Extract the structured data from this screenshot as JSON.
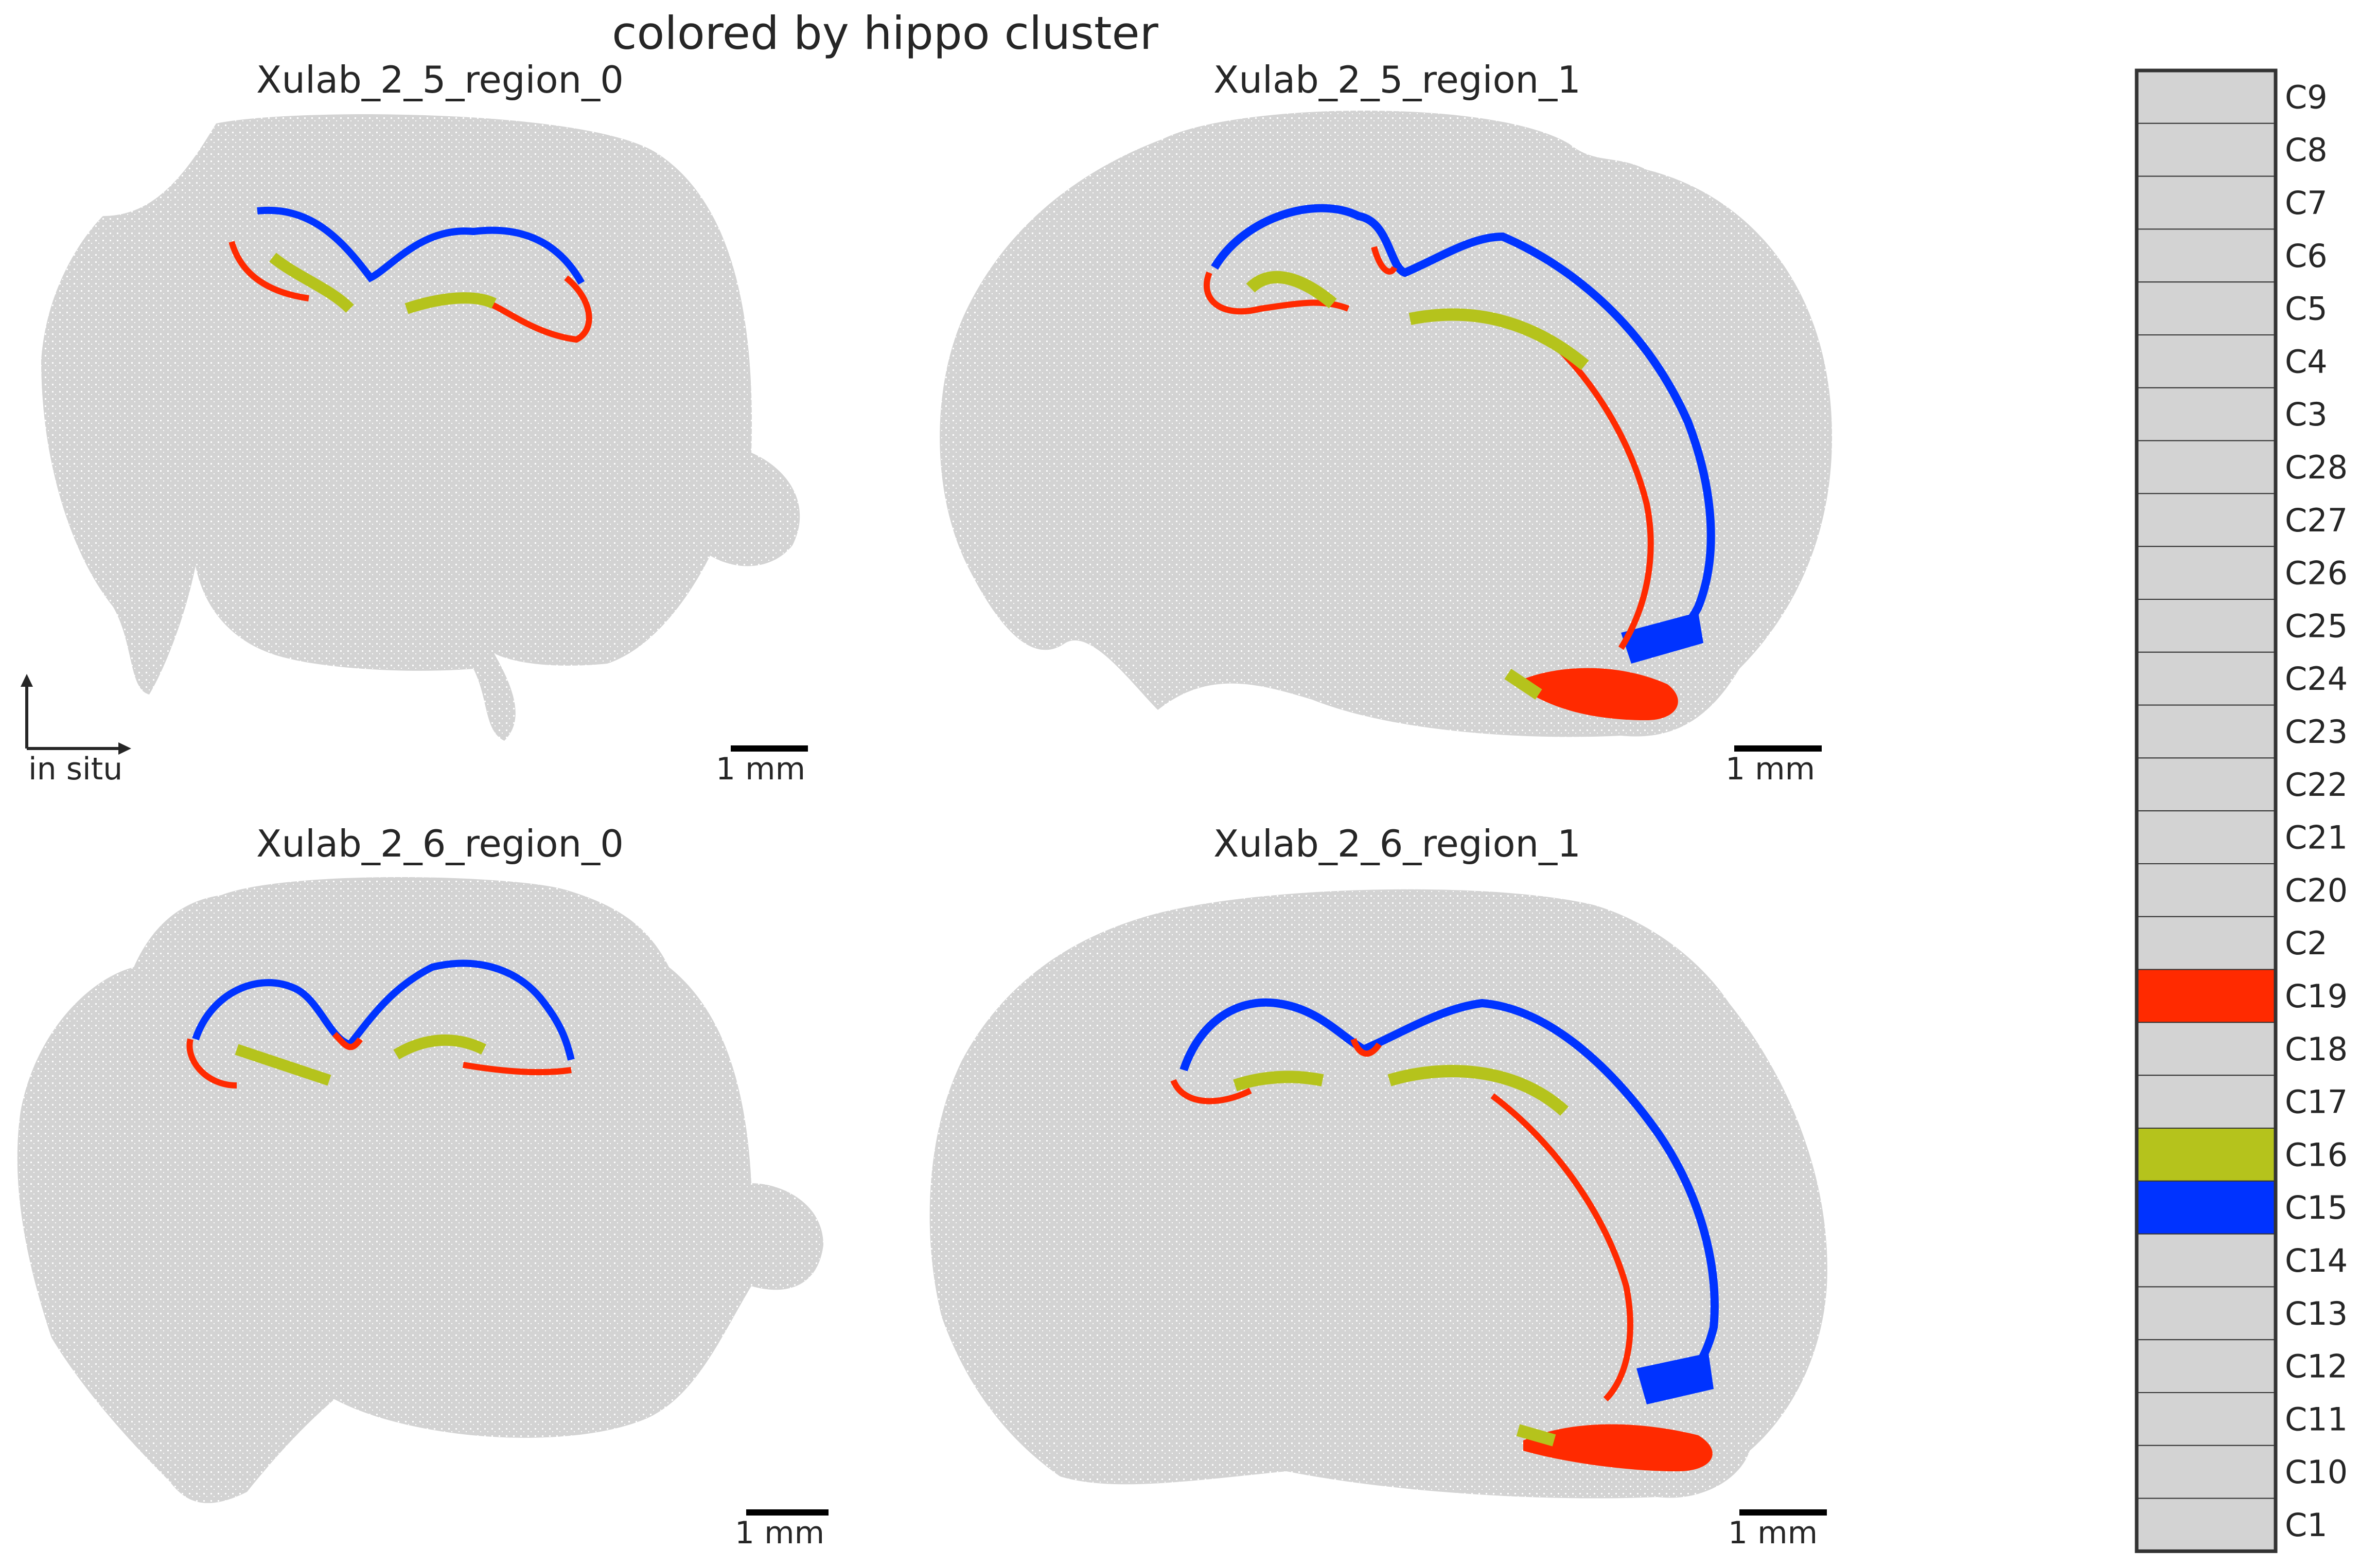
{
  "figure": {
    "title": "colored by hippo cluster",
    "axis_label": "in situ",
    "scale_label": "1 mm"
  },
  "colors": {
    "background_tissue": "#d3d3d3",
    "C19": "#ff2a00",
    "C16": "#b5c31c",
    "C15": "#0033ff",
    "other": "#d3d3d3",
    "legend_border": "#333333",
    "text": "#262626"
  },
  "chart_data": [
    {
      "type": "scatter",
      "title": "Xulab_2_5_region_0",
      "series_highlighted": [
        "C15",
        "C16",
        "C19"
      ]
    },
    {
      "type": "scatter",
      "title": "Xulab_2_5_region_1",
      "series_highlighted": [
        "C15",
        "C16",
        "C19"
      ]
    },
    {
      "type": "scatter",
      "title": "Xulab_2_6_region_0",
      "series_highlighted": [
        "C15",
        "C16",
        "C19"
      ]
    },
    {
      "type": "scatter",
      "title": "Xulab_2_6_region_1",
      "series_highlighted": [
        "C15",
        "C16",
        "C19"
      ]
    }
  ],
  "legend": {
    "entries": [
      {
        "label": "C9",
        "color": "#d3d3d3"
      },
      {
        "label": "C8",
        "color": "#d3d3d3"
      },
      {
        "label": "C7",
        "color": "#d3d3d3"
      },
      {
        "label": "C6",
        "color": "#d3d3d3"
      },
      {
        "label": "C5",
        "color": "#d3d3d3"
      },
      {
        "label": "C4",
        "color": "#d3d3d3"
      },
      {
        "label": "C3",
        "color": "#d3d3d3"
      },
      {
        "label": "C28",
        "color": "#d3d3d3"
      },
      {
        "label": "C27",
        "color": "#d3d3d3"
      },
      {
        "label": "C26",
        "color": "#d3d3d3"
      },
      {
        "label": "C25",
        "color": "#d3d3d3"
      },
      {
        "label": "C24",
        "color": "#d3d3d3"
      },
      {
        "label": "C23",
        "color": "#d3d3d3"
      },
      {
        "label": "C22",
        "color": "#d3d3d3"
      },
      {
        "label": "C21",
        "color": "#d3d3d3"
      },
      {
        "label": "C20",
        "color": "#d3d3d3"
      },
      {
        "label": "C2",
        "color": "#d3d3d3"
      },
      {
        "label": "C19",
        "color": "#ff2a00"
      },
      {
        "label": "C18",
        "color": "#d3d3d3"
      },
      {
        "label": "C17",
        "color": "#d3d3d3"
      },
      {
        "label": "C16",
        "color": "#b5c31c"
      },
      {
        "label": "C15",
        "color": "#0033ff"
      },
      {
        "label": "C14",
        "color": "#d3d3d3"
      },
      {
        "label": "C13",
        "color": "#d3d3d3"
      },
      {
        "label": "C12",
        "color": "#d3d3d3"
      },
      {
        "label": "C11",
        "color": "#d3d3d3"
      },
      {
        "label": "C10",
        "color": "#d3d3d3"
      },
      {
        "label": "C1",
        "color": "#d3d3d3"
      }
    ]
  }
}
